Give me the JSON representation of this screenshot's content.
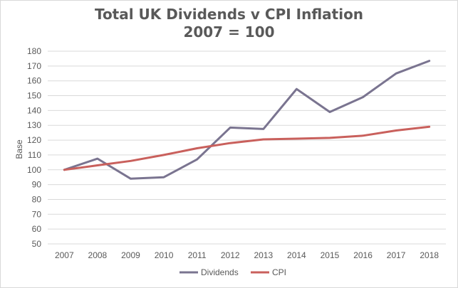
{
  "chart_data": {
    "type": "line",
    "title": "Total UK Dividends v CPI Inflation",
    "subtitle": "2007 = 100",
    "xlabel": "",
    "ylabel": "Base",
    "categories": [
      "2007",
      "2008",
      "2009",
      "2010",
      "2011",
      "2012",
      "2013",
      "2014",
      "2015",
      "2016",
      "2017",
      "2018"
    ],
    "ylim": [
      50,
      180
    ],
    "yticks": [
      50,
      60,
      70,
      80,
      90,
      100,
      110,
      120,
      130,
      140,
      150,
      160,
      170,
      180
    ],
    "grid": true,
    "legend": "bottom",
    "series": [
      {
        "name": "Dividends",
        "color": "#7a7490",
        "values": [
          100,
          107.5,
          94,
          95,
          107,
          128.5,
          127.5,
          154.5,
          139,
          149,
          165,
          173.5
        ]
      },
      {
        "name": "CPI",
        "color": "#c9605c",
        "values": [
          100,
          103,
          106,
          110,
          114.5,
          118,
          120.5,
          121,
          121.5,
          123,
          126.5,
          129
        ]
      }
    ]
  }
}
